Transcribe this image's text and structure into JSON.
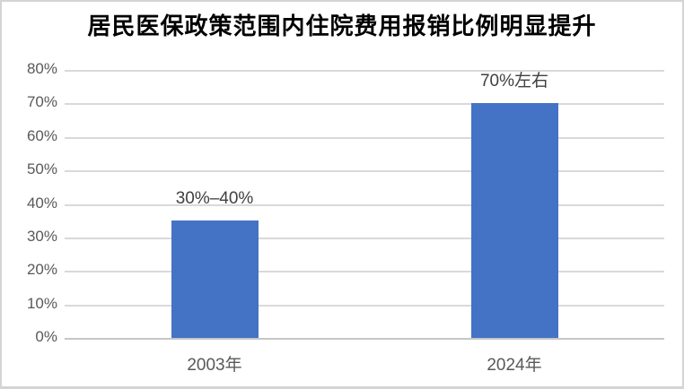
{
  "chart_data": {
    "type": "bar",
    "title": "居民医保政策范围内住院费用报销比例明显提升",
    "categories": [
      "2003年",
      "2024年"
    ],
    "values": [
      35,
      70
    ],
    "data_labels": [
      "30%–40%",
      "70%左右"
    ],
    "xlabel": "",
    "ylabel": "",
    "ylim": [
      0,
      80
    ],
    "ytick_step": 10,
    "ytick_labels": [
      "0%",
      "10%",
      "20%",
      "30%",
      "40%",
      "50%",
      "60%",
      "70%",
      "80%"
    ],
    "grid": true,
    "legend": false,
    "colors": {
      "bar": "#4472c4",
      "axis_tick_label": "#595959",
      "data_label": "#404040",
      "gridline": "#d9d9d9",
      "baseline": "#c6c6c6",
      "title": "#000000",
      "card_border": "#d4d4d4"
    }
  }
}
